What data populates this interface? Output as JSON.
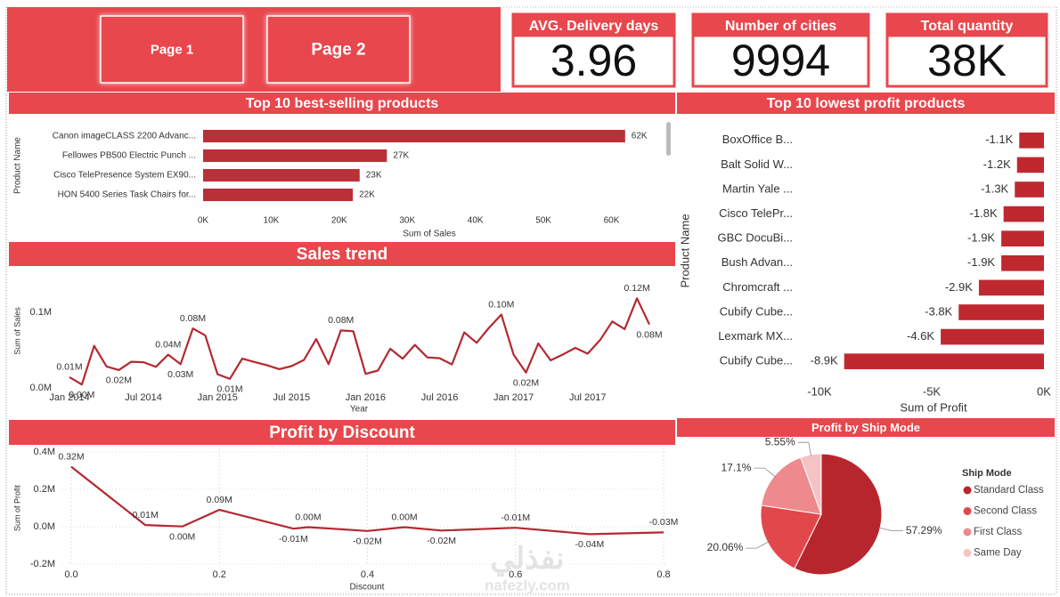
{
  "buttons": [
    "Page 1",
    "Page 2"
  ],
  "kpis": [
    {
      "title": "AVG. Delivery days",
      "value": 3.96
    },
    {
      "title": "Number of cities",
      "value": 9994
    },
    {
      "title": "Total quantity",
      "value": "38K"
    }
  ],
  "watermark": {
    "arabic": "نفذلي",
    "url": "nafezly.com"
  },
  "chart_data": [
    {
      "type": "hbar",
      "title": "Top 10 best-selling products",
      "categories": [
        "Canon imageCLASS 2200 Advanc...",
        "Fellowes PB500 Electric Punch ...",
        "Cisco TelePresence System EX90...",
        "HON 5400 Series Task Chairs for..."
      ],
      "values": [
        62000,
        27000,
        23000,
        22000
      ],
      "value_labels": [
        "62K",
        "27K",
        "23K",
        "22K"
      ],
      "color": "#b83038",
      "xlim": [
        0,
        67000
      ],
      "xticks": [
        {
          "value": 0,
          "label": "0K"
        },
        {
          "value": 10000,
          "label": "10K"
        },
        {
          "value": 20000,
          "label": "20K"
        },
        {
          "value": 30000,
          "label": "30K"
        },
        {
          "value": 40000,
          "label": "40K"
        },
        {
          "value": 50000,
          "label": "50K"
        },
        {
          "value": 60000,
          "label": "60K"
        }
      ],
      "x_label": "Sum of Sales",
      "y_label": "Product Name"
    },
    {
      "type": "line",
      "title": "Sales trend",
      "categories": [
        "Jan 2014",
        null,
        null,
        null,
        null,
        null,
        "Jul 2014",
        null,
        null,
        null,
        null,
        null,
        "Jan 2015",
        null,
        null,
        null,
        null,
        null,
        "Jul 2015",
        null,
        null,
        null,
        null,
        null,
        "Jan 2016",
        null,
        null,
        null,
        null,
        null,
        "Jul 2016",
        null,
        null,
        null,
        null,
        null,
        "Jan 2017",
        null,
        null,
        null,
        null,
        null,
        "Jul 2017",
        null,
        null,
        null,
        null,
        null
      ],
      "values": [
        14237,
        4520,
        55691,
        28295,
        23648,
        34595,
        33946,
        27909,
        44000,
        31453,
        78629,
        69546,
        18174,
        11951,
        38726,
        34195,
        30132,
        24797,
        28765,
        36898,
        64596,
        31405,
        75973,
        74920,
        18542,
        22979,
        51716,
        38750,
        56988,
        40344,
        39262,
        31115,
        73410,
        59688,
        79412,
        96999,
        43971,
        20301,
        58872,
        36522,
        44261,
        52982,
        45264,
        63121,
        87867,
        77777,
        118448,
        83829
      ],
      "value_labels": [
        "0.01M",
        "0.00M",
        null,
        null,
        "0.02M",
        null,
        null,
        null,
        "0.04M",
        "0.03M",
        "0.08M",
        null,
        null,
        "0.01M",
        null,
        null,
        null,
        null,
        null,
        null,
        null,
        null,
        "0.08M",
        null,
        null,
        null,
        null,
        null,
        null,
        null,
        null,
        null,
        null,
        null,
        null,
        "0.10M",
        null,
        "0.02M",
        null,
        null,
        null,
        null,
        null,
        null,
        null,
        null,
        "0.12M",
        "0.08M"
      ],
      "color": "#b22a30",
      "ylim": [
        0,
        140000
      ],
      "yticks": [
        {
          "value": 0,
          "label": "0.0M"
        },
        {
          "value": 100000,
          "label": "0.1M"
        }
      ],
      "x_label": "Year",
      "y_label": "Sum of Sales",
      "grid": false
    },
    {
      "type": "line",
      "title": "Profit by Discount",
      "x": [
        0,
        0.1,
        0.15,
        0.2,
        0.3,
        0.32,
        0.4,
        0.45,
        0.5,
        0.6,
        0.7,
        0.8
      ],
      "values": [
        320988,
        9029,
        1418,
        90338,
        -10369,
        -2391,
        -23057,
        -2493,
        -20506,
        -5944,
        -40075,
        -30540
      ],
      "value_labels": [
        "0.32M",
        "0.01M",
        "0.00M",
        "0.09M",
        "-0.01M",
        "0.00M",
        "-0.02M",
        "0.00M",
        "-0.02M",
        "-0.01M",
        "-0.04M",
        "-0.03M"
      ],
      "color": "#b22a30",
      "xlim": [
        0,
        0.8
      ],
      "xticks": [
        {
          "value": 0,
          "label": "0.0"
        },
        0.2,
        0.4,
        0.6,
        0.8
      ],
      "ylim": [
        -200000,
        400000
      ],
      "yticks": [
        {
          "value": -200000,
          "label": "-0.2M"
        },
        {
          "value": 0,
          "label": "0.0M"
        },
        {
          "value": 200000,
          "label": "0.2M"
        },
        {
          "value": 400000,
          "label": "0.4M"
        }
      ],
      "x_label": "Discount",
      "y_label": "Sum of Profit",
      "grid": true
    },
    {
      "type": "hbar",
      "title": "Top 10 lowest profit products",
      "categories": [
        "BoxOffice B...",
        "Balt Solid W...",
        "Martin Yale ...",
        "Cisco TelePr...",
        "GBC DocuBi...",
        "Bush Advan...",
        "Chromcraft ...",
        "Cubify Cube...",
        "Lexmark MX...",
        "Cubify Cube..."
      ],
      "values": [
        -1100,
        -1200,
        -1300,
        -1800,
        -1900,
        -1900,
        -2900,
        -3800,
        -4600,
        -8900
      ],
      "value_labels": [
        "-1.1K",
        "-1.2K",
        "-1.3K",
        "-1.8K",
        "-1.9K",
        "-1.9K",
        "-2.9K",
        "-3.8K",
        "-4.6K",
        "-8.9K"
      ],
      "color": "#c0282f",
      "xlim": [
        -10000,
        0
      ],
      "xticks": [
        {
          "value": -10000,
          "label": "-10K"
        },
        {
          "value": -5000,
          "label": "-5K"
        },
        {
          "value": 0,
          "label": "0K"
        }
      ],
      "x_label": "Sum of Profit",
      "y_label": "Product Name"
    },
    {
      "type": "pie",
      "title": "Profit by Ship Mode",
      "categories": [
        "Standard Class",
        "Second Class",
        "First Class",
        "Same Day"
      ],
      "values": [
        57.29,
        20.06,
        17.1,
        5.55
      ],
      "value_labels": [
        "57.29%",
        "20.06%",
        "17.1%",
        "5.55%"
      ],
      "colors": [
        "#b8262d",
        "#e2474c",
        "#ee8a8d",
        "#f6c3c4"
      ],
      "legend_title": "Ship Mode",
      "legend": "right"
    }
  ]
}
